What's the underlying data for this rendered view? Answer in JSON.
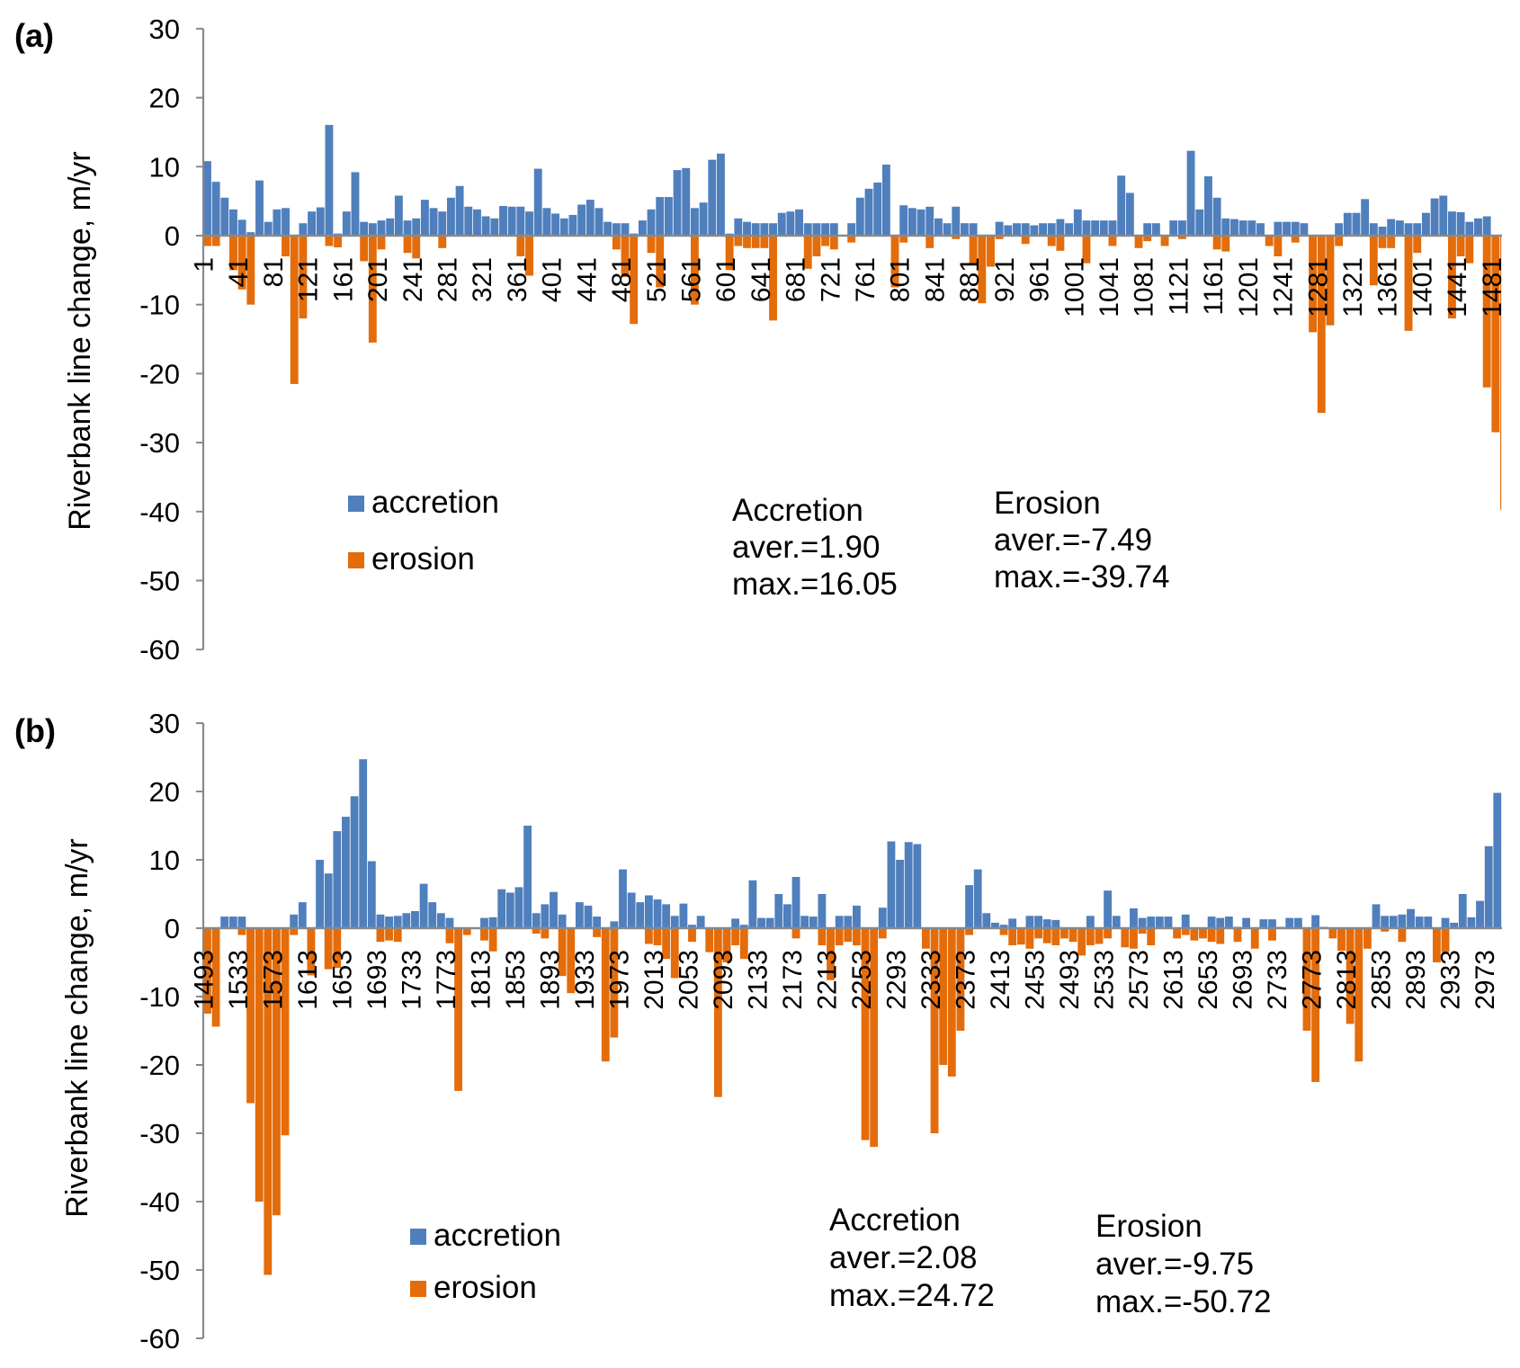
{
  "colors": {
    "accretion": "#4f7fbd",
    "erosion": "#e46c0a",
    "axis": "#898989"
  },
  "chart_data": [
    {
      "type": "bar",
      "panel_label": "(a)",
      "ylabel": "Riverbank line change, m/yr",
      "ylim": [
        -60,
        30
      ],
      "yticks": [
        "30",
        "20",
        "10",
        "0",
        "-10",
        "-20",
        "-30",
        "-40",
        "-50",
        "-60"
      ],
      "x_range": [
        1,
        1492
      ],
      "bin_size": 10,
      "xtick_labels": [
        "1",
        "41",
        "81",
        "121",
        "161",
        "201",
        "241",
        "281",
        "321",
        "361",
        "401",
        "441",
        "481",
        "521",
        "561",
        "601",
        "641",
        "681",
        "721",
        "761",
        "801",
        "841",
        "881",
        "921",
        "961",
        "1001",
        "1041",
        "1081",
        "1121",
        "1161",
        "1201",
        "1241",
        "1281",
        "1321",
        "1361",
        "1401",
        "1441",
        "1481"
      ],
      "legend": [
        "accretion",
        "erosion"
      ],
      "legend_placement": "lower-left",
      "stats": {
        "accretion": {
          "title": "Accretion",
          "aver": "aver.=1.90",
          "max": "max.=16.05"
        },
        "erosion": {
          "title": "Erosion",
          "aver": "aver.=-7.49",
          "max": "max.=-39.74"
        }
      },
      "series": [
        {
          "name": "accretion",
          "values": [
            10.8,
            7.8,
            5.5,
            3.8,
            2.3,
            0.5,
            8,
            2,
            3.8,
            4,
            0,
            1.8,
            3.5,
            4.1,
            16.05,
            0.3,
            3.5,
            9.2,
            2,
            1.8,
            2.2,
            2.5,
            5.8,
            2.2,
            2.5,
            5.2,
            4,
            3.5,
            5.5,
            7.2,
            4.2,
            3.8,
            2.8,
            2.5,
            4.3,
            4.2,
            4.2,
            3.5,
            9.7,
            4,
            3.2,
            2.5,
            3,
            4.5,
            5.2,
            4,
            2,
            1.8,
            1.8,
            0.3,
            2.2,
            3.8,
            5.6,
            5.6,
            9.5,
            9.8,
            4,
            4.8,
            11,
            11.9,
            0.3,
            2.5,
            2,
            1.8,
            1.8,
            1.8,
            3.3,
            3.5,
            3.8,
            1.8,
            1.8,
            1.8,
            1.8,
            0,
            1.8,
            5.5,
            6.8,
            7.7,
            10.3,
            0,
            4.4,
            4,
            3.8,
            4.2,
            2.5,
            1.8,
            4.2,
            1.8,
            1.8,
            0,
            0,
            2,
            1.5,
            1.8,
            1.8,
            1.5,
            1.8,
            1.8,
            2.4,
            1.8,
            3.8,
            2.2,
            2.2,
            2.2,
            2.2,
            8.7,
            6.2,
            0,
            1.8,
            1.8,
            0,
            2.2,
            2.2,
            12.3,
            3.8,
            8.6,
            5.5,
            2.5,
            2.4,
            2.2,
            2.2,
            1.8,
            0,
            2,
            2,
            2,
            1.8,
            0,
            0,
            0,
            1.8,
            3.3,
            3.3,
            5.3,
            1.8,
            1.3,
            2.4,
            2.2,
            1.8,
            1.8,
            3.3,
            5.4,
            5.8,
            3.5,
            3.4,
            2,
            2.5,
            2.8,
            0,
            0
          ]
        },
        {
          "name": "erosion",
          "values": [
            -1.5,
            -1.5,
            0,
            -5,
            -7.8,
            -10,
            0,
            0,
            0,
            -3,
            -21.5,
            -12,
            0,
            0,
            -1.5,
            -1.7,
            0,
            0,
            -3.7,
            -15.5,
            -2,
            0,
            0,
            -2.5,
            -3.3,
            0,
            0,
            -1.8,
            0,
            0,
            0,
            0,
            0,
            0,
            0,
            0,
            -3,
            -5.8,
            0,
            0,
            0,
            0,
            0,
            0,
            0,
            0,
            0,
            -2,
            -6,
            -12.8,
            0,
            -2.5,
            -7.5,
            0,
            0,
            0,
            -10,
            0,
            0,
            0,
            -5,
            -1.5,
            -1.8,
            -1.8,
            -1.8,
            -12.3,
            0,
            0,
            0,
            -4.8,
            -3,
            -1.5,
            -2,
            0,
            -1,
            0,
            0,
            0,
            0,
            -7.5,
            -1,
            0,
            0,
            -1.8,
            0,
            0,
            -0.5,
            0,
            -4,
            -9.8,
            -4.5,
            -0.5,
            0,
            0,
            -1.2,
            0,
            0,
            -1.5,
            -2.2,
            0,
            0,
            -4,
            0,
            0,
            -1.5,
            0,
            0,
            -1.8,
            -0.8,
            0,
            -1.5,
            0,
            -0.5,
            0,
            0,
            0,
            -2,
            -2.3,
            0,
            0,
            0,
            0,
            -1.5,
            -3,
            0,
            -1,
            0,
            -14,
            -25.7,
            -13,
            -1.5,
            0,
            0,
            0,
            -7.2,
            -1.8,
            -1.8,
            0,
            -13.8,
            -2.5,
            0,
            0,
            0,
            -12,
            -3,
            -4,
            0,
            -22,
            -28.5,
            -39.74
          ]
        }
      ]
    },
    {
      "type": "bar",
      "panel_label": "(b)",
      "ylabel": "Riverbank line change, m/yr",
      "ylim": [
        -60,
        30
      ],
      "yticks": [
        "30",
        "20",
        "10",
        "0",
        "-10",
        "-20",
        "-30",
        "-40",
        "-50",
        "-60"
      ],
      "x_range": [
        1493,
        2992
      ],
      "bin_size": 10,
      "xtick_labels": [
        "1493",
        "1533",
        "1573",
        "1613",
        "1653",
        "1693",
        "1733",
        "1773",
        "1813",
        "1853",
        "1893",
        "1933",
        "1973",
        "2013",
        "2053",
        "2093",
        "2133",
        "2173",
        "2213",
        "2253",
        "2293",
        "2333",
        "2373",
        "2413",
        "2453",
        "2493",
        "2533",
        "2573",
        "2613",
        "2653",
        "2693",
        "2733",
        "2773",
        "2813",
        "2853",
        "2893",
        "2933",
        "2973"
      ],
      "legend": [
        "accretion",
        "erosion"
      ],
      "legend_placement": "lower-left",
      "stats": {
        "accretion": {
          "title": "Accretion",
          "aver": "aver.=2.08",
          "max": "max.=24.72"
        },
        "erosion": {
          "title": "Erosion",
          "aver": "aver.=-9.75",
          "max": "max.=-50.72"
        }
      },
      "series": [
        {
          "name": "accretion",
          "values": [
            0,
            0,
            1.7,
            1.7,
            1.7,
            0,
            0,
            0,
            0,
            0,
            2,
            3.8,
            0,
            10,
            8,
            14.2,
            16.3,
            19.3,
            24.72,
            9.8,
            2,
            1.7,
            1.8,
            2.2,
            2.5,
            6.5,
            3.8,
            2.2,
            1.5,
            0,
            0,
            0,
            1.5,
            1.6,
            5.7,
            5.2,
            6,
            15,
            2.2,
            3.5,
            5.3,
            2,
            0,
            3.8,
            3.3,
            1.7,
            0,
            1,
            8.6,
            5.2,
            3.8,
            4.8,
            4.2,
            3.5,
            1.8,
            3.6,
            0.5,
            1.8,
            0,
            0,
            0,
            1.4,
            0.5,
            7,
            1.5,
            1.5,
            5,
            3.5,
            7.5,
            1.8,
            1.7,
            5,
            0,
            1.8,
            1.8,
            3.3,
            0,
            0,
            3,
            12.7,
            10,
            12.6,
            12.3,
            0,
            0,
            0,
            0,
            0,
            6.3,
            8.6,
            2.2,
            0.8,
            0.5,
            1.4,
            0,
            1.8,
            1.8,
            1.3,
            1.2,
            0,
            0,
            0,
            1.8,
            0,
            5.5,
            1.8,
            0,
            2.9,
            1.5,
            1.7,
            1.7,
            1.7,
            0,
            2,
            0,
            0,
            1.7,
            1.5,
            1.7,
            0.2,
            1.5,
            0,
            1.3,
            1.3,
            0.2,
            1.5,
            1.5,
            0,
            1.9,
            0.2,
            0,
            0,
            0,
            0,
            0,
            3.5,
            1.8,
            1.8,
            2,
            2.8,
            1.7,
            1.7,
            0,
            1.5,
            0.8,
            5,
            1.6,
            4,
            12,
            19.8
          ]
        },
        {
          "name": "erosion",
          "values": [
            -12.5,
            -14.4,
            0,
            0,
            -1,
            -25.6,
            -40,
            -50.72,
            -42,
            -30.3,
            -1,
            0,
            -6.9,
            0,
            -6,
            -5.8,
            0,
            0,
            0,
            0,
            -2,
            -1.8,
            -2,
            0,
            0,
            0,
            0,
            0,
            -2.2,
            -23.8,
            -1,
            0,
            -1.8,
            -3.4,
            0,
            0,
            0,
            0,
            -0.8,
            -1.5,
            0,
            -7,
            -9.5,
            0,
            0,
            -1.3,
            -19.5,
            -16,
            0,
            0,
            0,
            -2.3,
            -2.5,
            -4.5,
            -7.3,
            0,
            -2,
            0,
            -3.5,
            -24.7,
            -5,
            -2.5,
            -4.5,
            0,
            0,
            0,
            0,
            0,
            -1.5,
            0,
            0,
            -2.5,
            -7.6,
            -2.5,
            -2,
            -2.5,
            -31,
            -32,
            -1.5,
            0,
            0,
            0,
            0,
            -3,
            -30,
            -20,
            -21.7,
            -15,
            -1,
            0,
            0,
            0,
            -1,
            -2.5,
            -2.4,
            -3,
            -1.5,
            -2.2,
            -2.5,
            -1.5,
            -2,
            -4,
            -2.5,
            -2.3,
            -1.5,
            0,
            -2.8,
            -3,
            -0.8,
            -2.5,
            0,
            0,
            -1.5,
            -1,
            -1.8,
            -1.5,
            -2,
            -2.3,
            0,
            -2,
            0,
            -3,
            0,
            -1.8,
            0,
            0,
            0,
            -15,
            -22.5,
            0,
            -1.5,
            -3.3,
            -14,
            -19.5,
            -3,
            0,
            -0.5,
            0,
            -2,
            0,
            0,
            0,
            -5,
            -3.5,
            0,
            0,
            0,
            0,
            0,
            0
          ]
        }
      ]
    }
  ]
}
